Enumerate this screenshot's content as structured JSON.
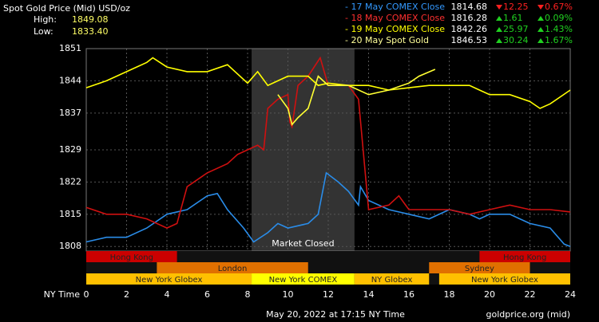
{
  "chart_data": {
    "type": "line",
    "title": "Spot Gold Price (Mid) USD/oz",
    "high_label": "High:",
    "high": "1849.08",
    "low_label": "Low:",
    "low": "1833.40",
    "xlabel": "NY Time",
    "timestamp": "May 20, 2022 at 17:15 NY Time",
    "source": "goldprice.org (mid)",
    "annotation": "Market Closed",
    "closed_range": [
      8.2,
      13.3
    ],
    "xlim": [
      0,
      24
    ],
    "xticks": [
      0,
      2,
      4,
      6,
      8,
      10,
      12,
      14,
      16,
      18,
      20,
      22,
      24
    ],
    "ylim": [
      1807,
      1851
    ],
    "yticks": [
      1808,
      1815,
      1822,
      1829,
      1837,
      1844,
      1851
    ],
    "grid": true,
    "legend": [
      {
        "name": "- 17 May COMEX Close",
        "color": "#3399ff",
        "value": "1814.68",
        "change": "12.25",
        "pct": "0.67%",
        "direction": "down"
      },
      {
        "name": "- 18 May COMEX Close",
        "color": "#ff3030",
        "value": "1816.28",
        "change": "1.61",
        "pct": "0.09%",
        "direction": "up"
      },
      {
        "name": "- 19 May COMEX Close",
        "color": "#ffff00",
        "value": "1842.26",
        "change": "25.97",
        "pct": "1.43%",
        "direction": "up"
      },
      {
        "name": "- 20 May Spot Gold",
        "color": "#ffff99",
        "value": "1846.53",
        "change": "30.24",
        "pct": "1.67%",
        "direction": "up"
      }
    ],
    "series": [
      {
        "name": "17 May",
        "color": "#2a8ce8",
        "x": [
          0,
          1,
          2,
          3,
          4,
          5,
          6,
          6.5,
          7,
          7.8,
          8.3,
          9,
          9.5,
          10,
          11,
          11.5,
          11.9,
          12.5,
          13,
          13.5,
          13.6,
          14,
          15,
          16,
          17,
          18,
          19,
          19.5,
          20,
          21,
          21.5,
          22,
          23,
          23.7,
          24
        ],
        "values": [
          1809,
          1810,
          1810,
          1812,
          1815,
          1816,
          1819,
          1819.5,
          1816,
          1812,
          1809,
          1811,
          1813,
          1812,
          1813,
          1815,
          1824,
          1822,
          1820,
          1817,
          1821,
          1818,
          1816,
          1815,
          1814,
          1816,
          1815,
          1814,
          1815,
          1815,
          1814,
          1813,
          1812,
          1808.5,
          1808
        ]
      },
      {
        "name": "18 May",
        "color": "#d01010",
        "x": [
          0,
          1,
          2,
          3,
          4,
          4.5,
          5,
          6,
          7,
          7.5,
          8,
          8.5,
          8.8,
          9,
          9.5,
          10,
          10.1,
          10.2,
          10.5,
          11,
          11.6,
          12,
          12.5,
          13,
          13.5,
          14,
          15,
          15.5,
          16,
          17,
          18,
          19,
          20,
          21,
          22,
          23,
          24
        ],
        "values": [
          1816.5,
          1815,
          1815,
          1814,
          1812,
          1813,
          1821,
          1824,
          1826,
          1828,
          1829,
          1830,
          1829,
          1838,
          1840,
          1841,
          1835,
          1834,
          1843,
          1845,
          1849,
          1843,
          1843,
          1843,
          1840,
          1816,
          1817,
          1819,
          1816,
          1816,
          1816,
          1815,
          1816,
          1817,
          1816,
          1816,
          1815.5
        ]
      },
      {
        "name": "19 May",
        "color": "#ffff00",
        "x": [
          0,
          1,
          1.5,
          2,
          2.5,
          3,
          3.3,
          4,
          5,
          6,
          7,
          8,
          8.5,
          9,
          9.5,
          10,
          11,
          11.5,
          12,
          13,
          14,
          15,
          16,
          17,
          18,
          19,
          19.5,
          20,
          21,
          22,
          22.5,
          23,
          24
        ],
        "values": [
          1842.5,
          1844,
          1845,
          1846,
          1847,
          1848,
          1849,
          1847,
          1846,
          1846,
          1847.5,
          1843.5,
          1846,
          1843,
          1844,
          1845,
          1845,
          1843,
          1843.5,
          1843,
          1843,
          1842,
          1842.5,
          1843,
          1843,
          1843,
          1842,
          1841,
          1841,
          1839.5,
          1838,
          1839,
          1842
        ]
      },
      {
        "name": "20 May",
        "color": "#ffff33",
        "x": [
          9.5,
          10,
          10.2,
          10.5,
          11,
          11.5,
          12,
          13,
          14,
          15,
          16,
          16.5,
          17.3
        ],
        "values": [
          1841,
          1838,
          1834.5,
          1836,
          1838,
          1845,
          1843,
          1843,
          1841,
          1842,
          1843.5,
          1845,
          1846.5
        ]
      }
    ],
    "sessions": [
      {
        "row": 0,
        "start": 0,
        "end": 4.5,
        "label": "Hong Kong",
        "color": "#cc0000"
      },
      {
        "row": 0,
        "start": 19.5,
        "end": 24,
        "label": "Hong Kong",
        "color": "#cc0000"
      },
      {
        "row": 1,
        "start": 3.5,
        "end": 11,
        "label": "London",
        "color": "#e07000"
      },
      {
        "row": 1,
        "start": 17,
        "end": 22,
        "label": "Sydney",
        "color": "#e07000"
      },
      {
        "row": 2,
        "start": 0,
        "end": 8.2,
        "label": "New York Globex",
        "color": "#ffc000"
      },
      {
        "row": 2,
        "start": 8.2,
        "end": 13.3,
        "label": "New York COMEX",
        "color": "#ffff00"
      },
      {
        "row": 2,
        "start": 13.3,
        "end": 17,
        "label": "NY Globex",
        "color": "#ffc000"
      },
      {
        "row": 2,
        "start": 17.5,
        "end": 24,
        "label": "New York Globex",
        "color": "#ffc000"
      }
    ]
  }
}
